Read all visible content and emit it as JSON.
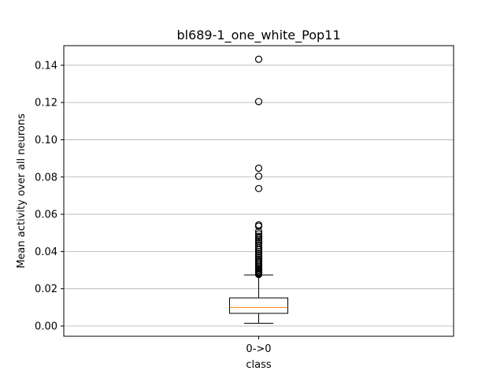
{
  "chart_data": {
    "type": "box",
    "title": "bl689-1_one_white_Pop11",
    "xlabel": "class",
    "ylabel": "Mean activity over all neurons",
    "categories": [
      "0->0"
    ],
    "ylim": [
      -0.0055,
      0.1505
    ],
    "yticks": [
      0.0,
      0.02,
      0.04,
      0.06,
      0.08,
      0.1,
      0.12,
      0.14
    ],
    "ytick_labels": [
      "0.00",
      "0.02",
      "0.04",
      "0.06",
      "0.08",
      "0.10",
      "0.12",
      "0.14"
    ],
    "grid": "y",
    "boxes": [
      {
        "category": "0->0",
        "whisker_low": 0.0015,
        "q1": 0.0068,
        "median": 0.01,
        "q3": 0.0151,
        "whisker_high": 0.0274,
        "outliers": [
          0.1432,
          0.1205,
          0.0847,
          0.0804,
          0.0738,
          0.0543,
          0.0536,
          0.0508,
          0.0495,
          0.0482,
          0.0472,
          0.0463,
          0.0455,
          0.0445,
          0.0432,
          0.042,
          0.041,
          0.04,
          0.039,
          0.038,
          0.037,
          0.036,
          0.0352,
          0.0344,
          0.0336,
          0.0328,
          0.032,
          0.0312,
          0.0305,
          0.0298,
          0.0292,
          0.0286,
          0.0281,
          0.0277
        ]
      }
    ],
    "colors": {
      "box": "#000000",
      "median": "#ff7f0e",
      "grid": "#b0b0b0"
    }
  }
}
